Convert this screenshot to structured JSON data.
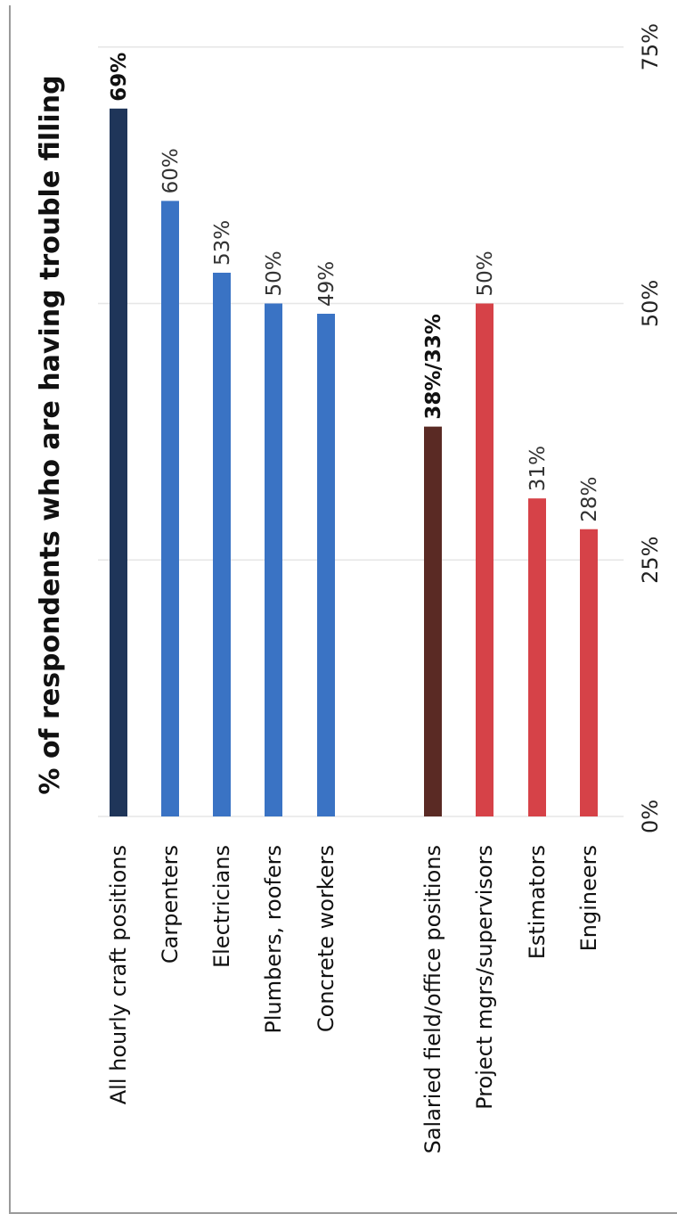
{
  "chart_data": {
    "type": "bar",
    "title": "% of respondents who are having trouble filling",
    "categories": [
      "All hourly craft positions",
      "Carpenters",
      "Electricians",
      "Plumbers, roofers",
      "Concrete workers",
      "Salaried field/office positions",
      "Project mgrs/supervisors",
      "Estimators",
      "Engineers"
    ],
    "values": [
      69,
      60,
      53,
      50,
      49,
      38,
      50,
      31,
      28
    ],
    "value_labels": [
      "69%",
      "60%",
      "53%",
      "50%",
      "49%",
      "38%/33%",
      "50%",
      "31%",
      "28%"
    ],
    "bold_labels": [
      true,
      false,
      false,
      false,
      false,
      true,
      false,
      false,
      false
    ],
    "bar_colors": [
      "#1f3559",
      "#3a73c4",
      "#3a73c4",
      "#3a73c4",
      "#3a73c4",
      "#5a2a24",
      "#d64248",
      "#d64248",
      "#d64248"
    ],
    "axis": {
      "ticks": [
        0,
        25,
        50,
        75
      ],
      "tick_labels": [
        "0%",
        "25%",
        "50%",
        "75%"
      ],
      "range": [
        0,
        75
      ]
    },
    "grid": true,
    "orientation": "rotated-horizontal-bars"
  }
}
